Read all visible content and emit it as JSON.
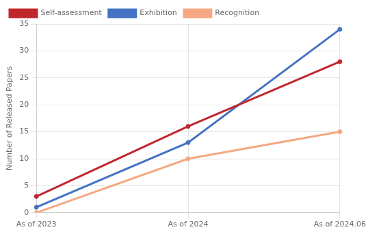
{
  "chart_data": {
    "type": "line",
    "categories": [
      "As of 2023",
      "As of 2024",
      "As of 2024.06"
    ],
    "series": [
      {
        "name": "Self-assessment",
        "color": "#c0272d",
        "values": [
          3,
          16,
          28
        ],
        "marker": "circle",
        "line_style": "solid"
      },
      {
        "name": "Exhibition",
        "color": "#4472c4",
        "values": [
          1,
          13,
          34
        ],
        "marker": "circle",
        "line_style": "solid"
      },
      {
        "name": "Recognition",
        "color": "#f4a882",
        "values": [
          0,
          10,
          15
        ],
        "marker": "circle",
        "line_style": "solid"
      }
    ],
    "ylabel": "Number of Released Papers",
    "ylim": [
      0,
      35
    ],
    "yticks": [
      0,
      5,
      10,
      15,
      20,
      25,
      30,
      35
    ],
    "grid": true,
    "legend": "upper left"
  }
}
